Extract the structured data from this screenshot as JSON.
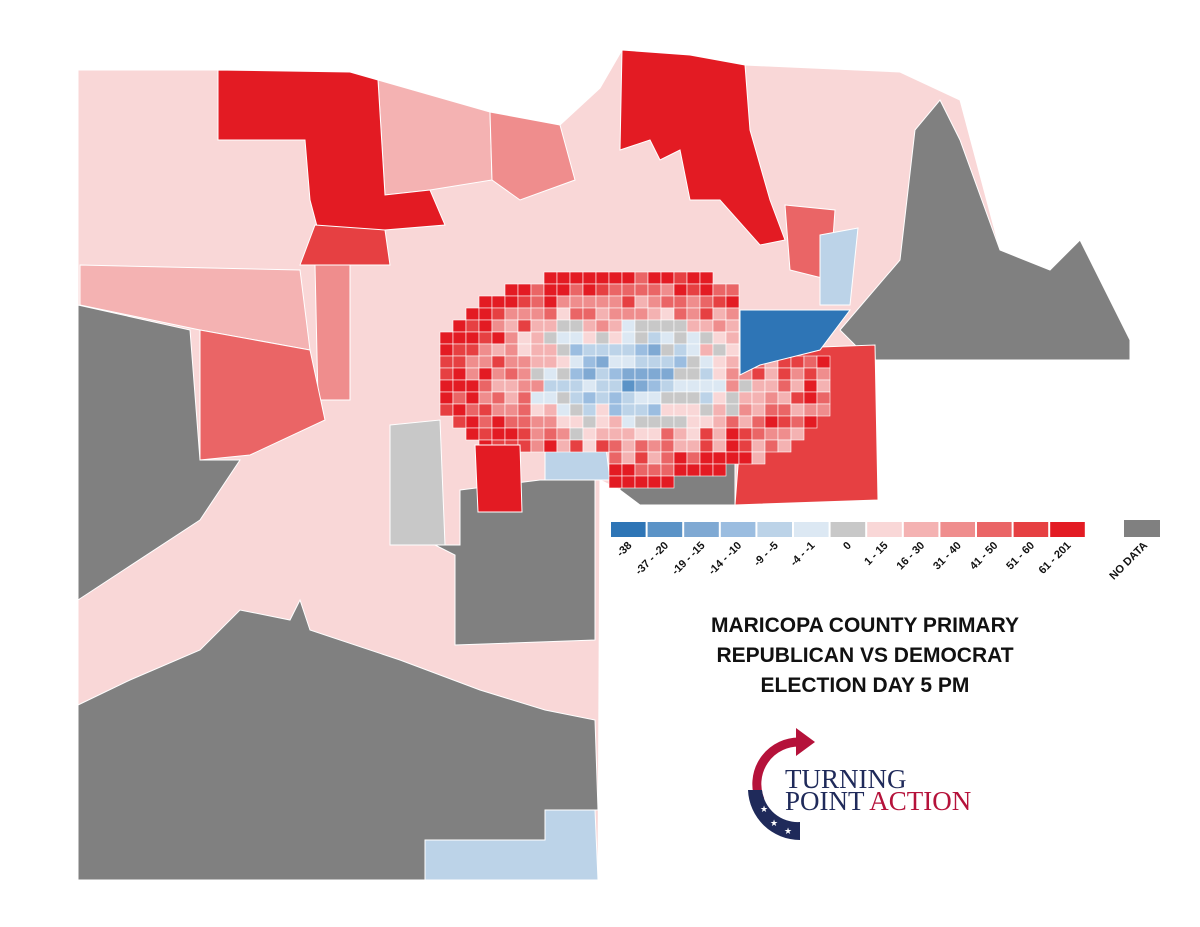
{
  "title": [
    "MARICOPA COUNTY PRIMARY",
    "REPUBLICAN VS DEMOCRAT",
    "ELECTION DAY 5 PM"
  ],
  "legend": {
    "items": [
      {
        "label": "-38",
        "color": "#2e75b6"
      },
      {
        "label": "-37 - -20",
        "color": "#5b93c7"
      },
      {
        "label": "-19 - -15",
        "color": "#7fa9d3"
      },
      {
        "label": "-14 - -10",
        "color": "#9bbde0"
      },
      {
        "label": "-9 - -5",
        "color": "#bcd3e8"
      },
      {
        "label": "-4 - -1",
        "color": "#dce8f3"
      },
      {
        "label": "0",
        "color": "#c8c8c8"
      },
      {
        "label": "1 - 15",
        "color": "#f9d7d7"
      },
      {
        "label": "16 - 30",
        "color": "#f4b2b2"
      },
      {
        "label": "31 - 40",
        "color": "#ef8d8d"
      },
      {
        "label": "41 - 50",
        "color": "#ea6566"
      },
      {
        "label": "51 - 60",
        "color": "#e64042"
      },
      {
        "label": "61 - 201",
        "color": "#e31b23"
      }
    ],
    "no_data": {
      "label": "NO DATA",
      "color": "#808080"
    }
  },
  "logo": {
    "line1": "TURNING",
    "line2": "POINT",
    "line2_accent": "ACTION"
  }
}
